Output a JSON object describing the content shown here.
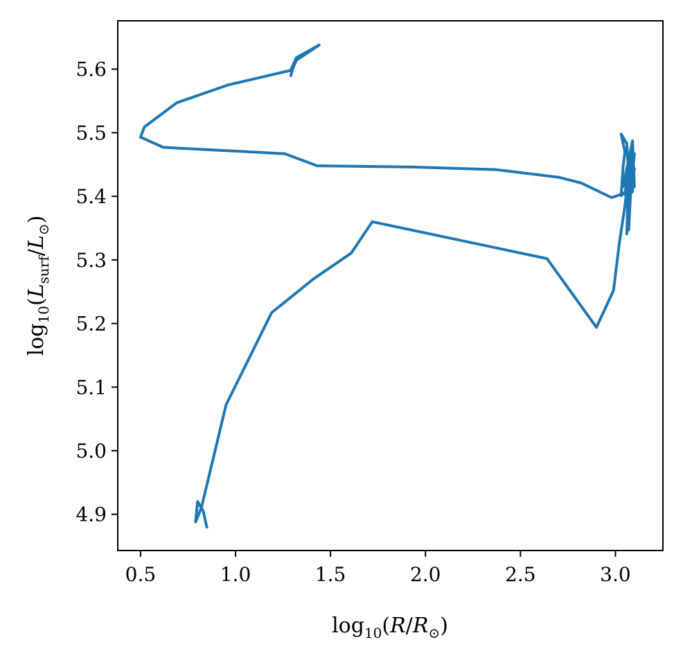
{
  "chart_data": {
    "type": "line",
    "title": "",
    "xlabel": "log10(R/R⊙)",
    "ylabel": "log10(Lsurf/L⊙)",
    "xlabel_parts": {
      "pre": "log",
      "sub": "10",
      "mid": "(",
      "var": "R",
      "slash": "/",
      "var2": "R",
      "sub2": "⊙",
      "post": ")"
    },
    "ylabel_parts": {
      "pre": "log",
      "sub": "10",
      "mid": "(",
      "var": "L",
      "sub_var": "surf",
      "slash": "/",
      "var2": "L",
      "sub2": "⊙",
      "post": ")"
    },
    "xlim": [
      0.38,
      3.25
    ],
    "ylim": [
      4.843,
      5.676
    ],
    "xticks": [
      0.5,
      1.0,
      1.5,
      2.0,
      2.5,
      3.0
    ],
    "xtick_labels": [
      "0.5",
      "1.0",
      "1.5",
      "2.0",
      "2.5",
      "3.0"
    ],
    "yticks": [
      4.9,
      5.0,
      5.1,
      5.2,
      5.3,
      5.4,
      5.5,
      5.6
    ],
    "ytick_labels": [
      "4.9",
      "5.0",
      "5.1",
      "5.2",
      "5.3",
      "5.4",
      "5.5",
      "5.6"
    ],
    "grid": false,
    "series": [
      {
        "color": "#1f77b4",
        "x": [
          0.85,
          0.83,
          0.8,
          0.79,
          0.82,
          0.95,
          1.19,
          1.41,
          1.61,
          1.72,
          2.64,
          2.9,
          2.99,
          3.02,
          3.05,
          3.06,
          3.07,
          3.08,
          3.09,
          3.08,
          3.1,
          3.07,
          3.09,
          3.08,
          3.1,
          3.07,
          3.09,
          3.07,
          3.08,
          3.06,
          3.07,
          3.05,
          3.1,
          3.09,
          3.04,
          3.07,
          3.06,
          3.03,
          3.05,
          3.04,
          3.03,
          3.09,
          3.09,
          3.05,
          3.06,
          3.05,
          2.98,
          2.82,
          2.7,
          2.37,
          1.93,
          1.43,
          1.26,
          0.62,
          0.5,
          0.52,
          0.69,
          0.96,
          1.29,
          1.32,
          1.44,
          1.32,
          1.3,
          1.29
        ],
        "y": [
          4.878,
          4.905,
          4.92,
          4.888,
          4.91,
          5.072,
          5.217,
          5.27,
          5.311,
          5.36,
          5.302,
          5.194,
          5.252,
          5.325,
          5.385,
          5.412,
          5.45,
          5.44,
          5.475,
          5.415,
          5.443,
          5.407,
          5.468,
          5.404,
          5.467,
          5.402,
          5.462,
          5.347,
          5.465,
          5.341,
          5.44,
          5.405,
          5.415,
          5.487,
          5.415,
          5.432,
          5.483,
          5.498,
          5.47,
          5.445,
          5.401,
          5.418,
          5.407,
          5.403,
          5.411,
          5.405,
          5.398,
          5.421,
          5.43,
          5.442,
          5.446,
          5.448,
          5.467,
          5.477,
          5.493,
          5.509,
          5.547,
          5.575,
          5.598,
          5.618,
          5.638,
          5.614,
          5.6,
          5.588
        ]
      }
    ]
  }
}
